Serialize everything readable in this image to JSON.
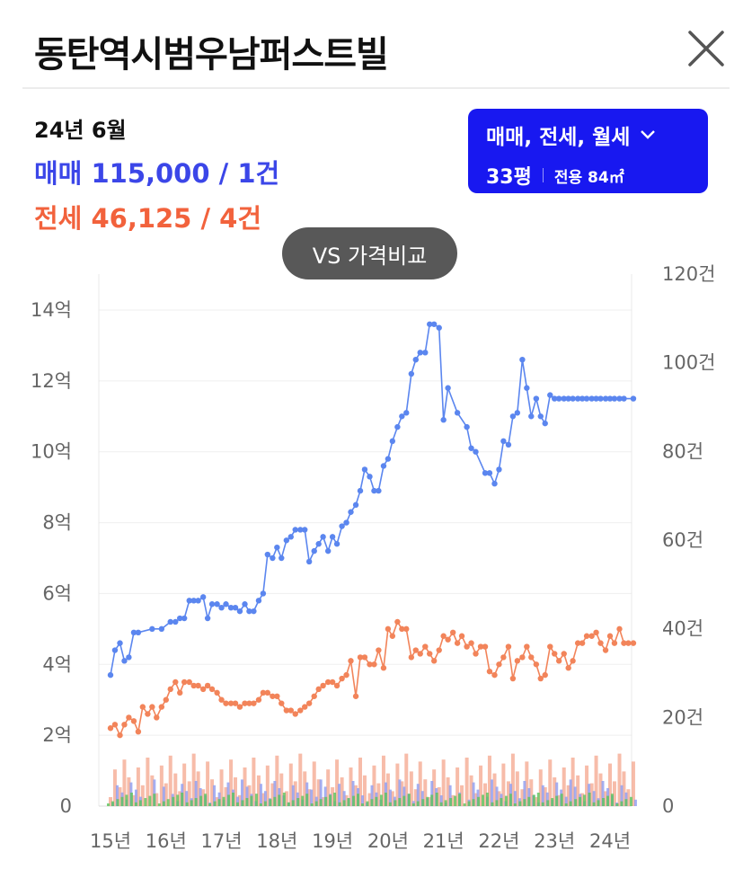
{
  "header": {
    "title": "동탄역시범우남퍼스트빌"
  },
  "summary": {
    "period": "24년 6월",
    "sale": "매매 115,000 / 1건",
    "jeonse": "전세 46,125 / 4건"
  },
  "filter": {
    "types": "매매, 전세, 월세",
    "pyeong": "33평",
    "area": "전용 84㎡"
  },
  "vs_button": "VS 가격비교",
  "colors": {
    "sale": "#5b86ef",
    "jeonse": "#f2845a",
    "volume_green": "#5bc35b",
    "accent": "#1818f0"
  },
  "icons": {
    "close": "close-icon",
    "dropdown": "chevron-down-icon"
  },
  "chart_data": {
    "type": "line",
    "x_ticks": [
      "15년",
      "16년",
      "17년",
      "18년",
      "19년",
      "20년",
      "21년",
      "22년",
      "23년",
      "24년"
    ],
    "y_left_ticks": [
      "0",
      "2억",
      "4억",
      "6억",
      "8억",
      "10억",
      "12억",
      "14억"
    ],
    "y_right_ticks": [
      "0",
      "20건",
      "40건",
      "60건",
      "80건",
      "100건",
      "120건"
    ],
    "y_left_range_eok": [
      0,
      14
    ],
    "y_right_range_count": [
      0,
      120
    ],
    "grid": true,
    "series": [
      {
        "name": "매매",
        "axis": "left",
        "x": [
          2015.0,
          2015.08,
          2015.17,
          2015.25,
          2015.33,
          2015.42,
          2015.5,
          2015.75,
          2015.92,
          2016.08,
          2016.17,
          2016.25,
          2016.33,
          2016.42,
          2016.5,
          2016.58,
          2016.67,
          2016.75,
          2016.83,
          2016.92,
          2017.0,
          2017.08,
          2017.17,
          2017.25,
          2017.33,
          2017.42,
          2017.5,
          2017.58,
          2017.67,
          2017.75,
          2017.83,
          2017.92,
          2018.0,
          2018.08,
          2018.17,
          2018.25,
          2018.33,
          2018.42,
          2018.5,
          2018.58,
          2018.67,
          2018.75,
          2018.83,
          2018.92,
          2019.0,
          2019.08,
          2019.17,
          2019.25,
          2019.33,
          2019.42,
          2019.5,
          2019.58,
          2019.67,
          2019.75,
          2019.83,
          2019.92,
          2020.0,
          2020.08,
          2020.17,
          2020.25,
          2020.33,
          2020.42,
          2020.5,
          2020.58,
          2020.67,
          2020.75,
          2020.83,
          2020.92,
          2021.0,
          2021.08,
          2021.25,
          2021.42,
          2021.5,
          2021.58,
          2021.75,
          2021.83,
          2021.92,
          2022.0,
          2022.08,
          2022.17,
          2022.25,
          2022.33,
          2022.42,
          2022.5,
          2022.58,
          2022.67,
          2022.75,
          2022.83,
          2022.92,
          2023.0,
          2023.08,
          2023.17,
          2023.25,
          2023.33,
          2023.42,
          2023.5,
          2023.58,
          2023.67,
          2023.75,
          2023.83,
          2023.92,
          2024.0,
          2024.08,
          2024.17,
          2024.25,
          2024.42
        ],
        "values": [
          3.7,
          4.4,
          4.6,
          4.1,
          4.2,
          4.9,
          4.9,
          5.0,
          5.0,
          5.2,
          5.2,
          5.3,
          5.3,
          5.8,
          5.8,
          5.8,
          5.9,
          5.3,
          5.7,
          5.7,
          5.6,
          5.7,
          5.6,
          5.6,
          5.5,
          5.7,
          5.5,
          5.5,
          5.8,
          6.0,
          7.1,
          7.0,
          7.3,
          7.0,
          7.5,
          7.6,
          7.8,
          7.8,
          7.8,
          6.9,
          7.2,
          7.4,
          7.6,
          7.2,
          7.6,
          7.4,
          7.9,
          8.0,
          8.3,
          8.5,
          8.9,
          9.5,
          9.3,
          8.9,
          8.9,
          9.6,
          9.8,
          10.3,
          10.7,
          11.0,
          11.1,
          12.2,
          12.6,
          12.8,
          12.8,
          13.6,
          13.6,
          13.5,
          10.9,
          11.8,
          11.1,
          10.7,
          10.1,
          10.0,
          9.4,
          9.4,
          9.1,
          9.5,
          10.3,
          10.2,
          11.0,
          11.1,
          12.6,
          11.8,
          11.0,
          11.5,
          11.0,
          10.8,
          11.6,
          11.5,
          11.5,
          11.5,
          11.5,
          11.5,
          11.5,
          11.5,
          11.5,
          11.5,
          11.5,
          11.5,
          11.5,
          11.5,
          11.5,
          11.5,
          11.5,
          11.5
        ]
      },
      {
        "name": "전세",
        "axis": "left",
        "x": [
          2015.0,
          2015.08,
          2015.17,
          2015.25,
          2015.33,
          2015.42,
          2015.5,
          2015.58,
          2015.67,
          2015.75,
          2015.83,
          2015.92,
          2016.0,
          2016.08,
          2016.17,
          2016.25,
          2016.33,
          2016.42,
          2016.5,
          2016.58,
          2016.67,
          2016.75,
          2016.83,
          2016.92,
          2017.0,
          2017.08,
          2017.17,
          2017.25,
          2017.33,
          2017.42,
          2017.5,
          2017.58,
          2017.67,
          2017.75,
          2017.83,
          2017.92,
          2018.0,
          2018.08,
          2018.17,
          2018.25,
          2018.33,
          2018.42,
          2018.5,
          2018.58,
          2018.67,
          2018.75,
          2018.83,
          2018.92,
          2019.0,
          2019.08,
          2019.17,
          2019.25,
          2019.33,
          2019.42,
          2019.5,
          2019.58,
          2019.67,
          2019.75,
          2019.83,
          2019.92,
          2020.0,
          2020.08,
          2020.17,
          2020.25,
          2020.33,
          2020.42,
          2020.5,
          2020.58,
          2020.67,
          2020.75,
          2020.83,
          2020.92,
          2021.0,
          2021.08,
          2021.17,
          2021.25,
          2021.33,
          2021.42,
          2021.5,
          2021.58,
          2021.67,
          2021.75,
          2021.83,
          2021.92,
          2022.0,
          2022.08,
          2022.17,
          2022.25,
          2022.33,
          2022.42,
          2022.5,
          2022.58,
          2022.67,
          2022.75,
          2022.83,
          2022.92,
          2023.0,
          2023.08,
          2023.17,
          2023.25,
          2023.33,
          2023.42,
          2023.5,
          2023.58,
          2023.67,
          2023.75,
          2023.83,
          2023.92,
          2024.0,
          2024.08,
          2024.17,
          2024.25,
          2024.33,
          2024.42
        ],
        "values": [
          2.2,
          2.3,
          2.0,
          2.3,
          2.5,
          2.4,
          2.1,
          2.8,
          2.6,
          2.8,
          2.5,
          2.8,
          3.0,
          3.3,
          3.5,
          3.2,
          3.5,
          3.5,
          3.4,
          3.4,
          3.3,
          3.4,
          3.3,
          3.2,
          3.0,
          2.9,
          2.9,
          2.9,
          2.8,
          2.9,
          2.9,
          2.9,
          3.0,
          3.2,
          3.2,
          3.1,
          3.1,
          2.9,
          2.7,
          2.7,
          2.6,
          2.7,
          2.8,
          2.9,
          3.1,
          3.3,
          3.4,
          3.5,
          3.5,
          3.4,
          3.6,
          3.7,
          4.1,
          3.1,
          4.2,
          4.2,
          4.0,
          4.0,
          4.4,
          3.9,
          5.0,
          4.8,
          5.2,
          5.0,
          5.0,
          4.2,
          4.4,
          4.3,
          4.5,
          4.3,
          4.1,
          4.4,
          4.8,
          4.7,
          4.9,
          4.6,
          4.8,
          4.5,
          4.6,
          4.3,
          4.5,
          4.5,
          3.8,
          3.7,
          4.0,
          4.2,
          4.5,
          3.6,
          4.1,
          4.2,
          4.5,
          4.2,
          4.0,
          3.6,
          3.7,
          4.5,
          4.3,
          4.1,
          4.3,
          3.9,
          4.1,
          4.6,
          4.6,
          4.8,
          4.8,
          4.9,
          4.6,
          4.4,
          4.8,
          4.6,
          5.0,
          4.6,
          4.6,
          4.6
        ]
      }
    ]
  }
}
